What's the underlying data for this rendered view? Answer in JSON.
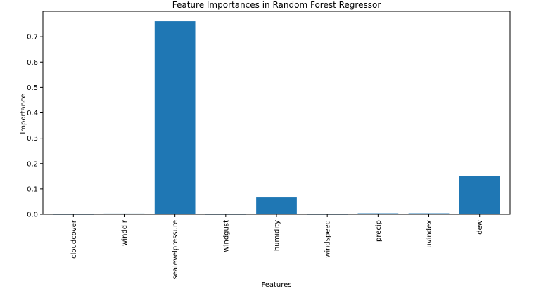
{
  "chart_data": {
    "type": "bar",
    "title": "Feature Importances in Random Forest Regressor",
    "xlabel": "Features",
    "ylabel": "Importance",
    "categories": [
      "cloudcover",
      "winddir",
      "sealevelpressure",
      "windgust",
      "humidity",
      "windspeed",
      "precip",
      "uvindex",
      "dew"
    ],
    "values": [
      0.001,
      0.003,
      0.761,
      0.001,
      0.069,
      0.001,
      0.004,
      0.004,
      0.152
    ],
    "ylim": [
      0,
      0.8
    ],
    "yticks": [
      "0.0",
      "0.1",
      "0.2",
      "0.3",
      "0.4",
      "0.5",
      "0.6",
      "0.7"
    ],
    "grid": false,
    "bar_color": "#1f77b4"
  }
}
